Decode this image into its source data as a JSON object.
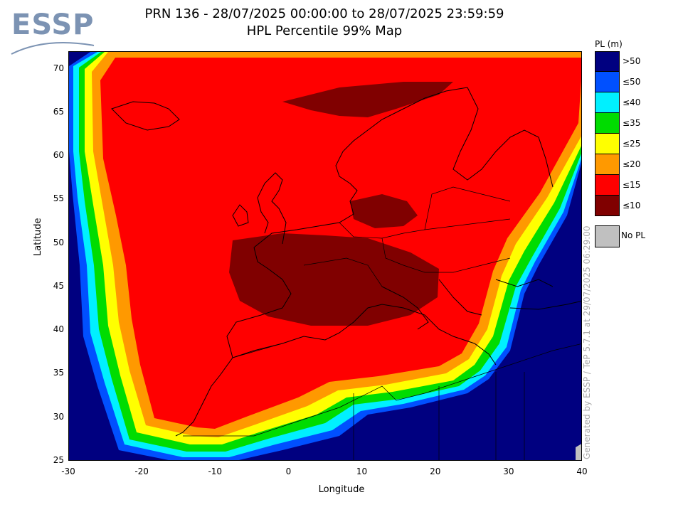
{
  "logo": {
    "text": "ESSP"
  },
  "title": {
    "line1": "PRN 136 - 28/07/2025 00:00:00 to 28/07/2025 23:59:59",
    "line2": "HPL Percentile 99% Map"
  },
  "axes": {
    "xlabel": "Longitude",
    "ylabel": "Latitude",
    "xlim": [
      -30,
      40
    ],
    "ylim": [
      25,
      72
    ],
    "xticks": [
      "-30",
      "-20",
      "-10",
      "0",
      "10",
      "20",
      "30",
      "40"
    ],
    "yticks": [
      "25",
      "30",
      "35",
      "40",
      "45",
      "50",
      "55",
      "60",
      "65",
      "70"
    ]
  },
  "legend": {
    "title": "PL (m)",
    "items": [
      {
        "label": ">50",
        "color": "#000080"
      },
      {
        "label": "≤50",
        "color": "#0050ff"
      },
      {
        "label": "≤40",
        "color": "#00f0ff"
      },
      {
        "label": "≤35",
        "color": "#00dc00"
      },
      {
        "label": "≤25",
        "color": "#ffff00"
      },
      {
        "label": "≤20",
        "color": "#ff9900"
      },
      {
        "label": "≤15",
        "color": "#ff0000"
      },
      {
        "label": "≤10",
        "color": "#800000"
      }
    ],
    "nopl": {
      "label": "No PL",
      "color": "#c0c0c0"
    }
  },
  "credit": "Generated by ESSP / TeP 5.7.1 at 29/07/2025 06:29:00"
}
